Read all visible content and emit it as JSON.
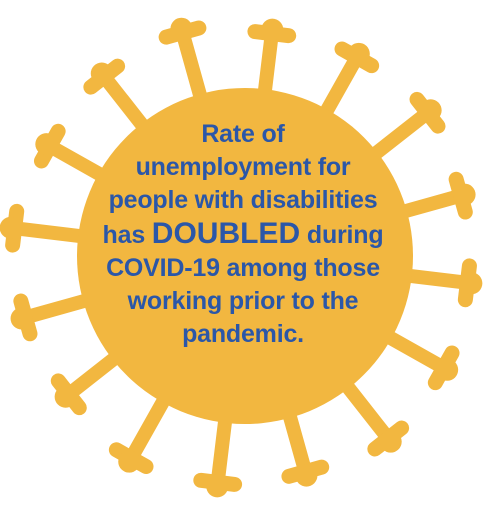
{
  "graphic": {
    "icon": "coronavirus-icon",
    "fill_color": "#f2b740",
    "background_color": "#ffffff"
  },
  "message": {
    "text_color": "#2b57a8",
    "line1": "Rate of",
    "line2": "unemployment for",
    "line3": "people with disabilities",
    "line4_before": "has ",
    "line4_emphasis": "DOUBLED",
    "line4_after": " during",
    "line5": "COVID-19 among those",
    "line6": "working prior to the",
    "line7": "pandemic."
  }
}
